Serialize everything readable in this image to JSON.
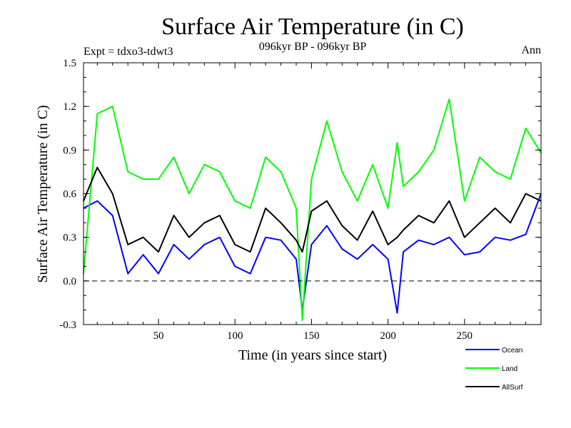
{
  "chart_data": {
    "type": "line",
    "title": "Surface Air Temperature (in C)",
    "subtitle": "096kyr BP - 096kyr BP",
    "left_note": "Expt = tdxo3-tdwt3",
    "right_note": "Ann",
    "xlabel": "Time (in years since start)",
    "ylabel": "Surface Air Temperature (in C)",
    "xlim": [
      1,
      300
    ],
    "ylim": [
      -0.3,
      1.5
    ],
    "x_ticks": [
      50,
      100,
      150,
      200,
      250
    ],
    "y_ticks": [
      -0.3,
      0.0,
      0.3,
      0.6,
      0.9,
      1.2,
      1.5
    ],
    "y_tick_labels": [
      "-0.3",
      "0.0",
      "0.3",
      "0.6",
      "0.9",
      "1.2",
      "1.5"
    ],
    "reference_line": {
      "y": 0.0,
      "style": "dashed"
    },
    "legend_position": "bottom-right, below plot",
    "grid": false,
    "x": [
      1,
      10,
      20,
      30,
      40,
      50,
      60,
      70,
      80,
      90,
      100,
      110,
      120,
      130,
      140,
      144,
      150,
      160,
      170,
      180,
      190,
      200,
      206,
      210,
      220,
      230,
      240,
      250,
      260,
      270,
      280,
      290,
      300
    ],
    "series": [
      {
        "name": "Ocean",
        "color": "#0000ff",
        "values": [
          0.5,
          0.55,
          0.45,
          0.05,
          0.18,
          0.05,
          0.25,
          0.15,
          0.25,
          0.3,
          0.1,
          0.05,
          0.3,
          0.28,
          0.15,
          -0.2,
          0.25,
          0.38,
          0.22,
          0.15,
          0.25,
          0.15,
          -0.22,
          0.2,
          0.28,
          0.25,
          0.3,
          0.18,
          0.2,
          0.3,
          0.28,
          0.32,
          0.6
        ]
      },
      {
        "name": "Land",
        "color": "#00ff00",
        "values": [
          0.05,
          1.15,
          1.2,
          0.75,
          0.7,
          0.7,
          0.85,
          0.6,
          0.8,
          0.75,
          0.55,
          0.5,
          0.85,
          0.75,
          0.5,
          -0.27,
          0.7,
          1.1,
          0.75,
          0.55,
          0.8,
          0.5,
          0.95,
          0.65,
          0.75,
          0.9,
          1.25,
          0.55,
          0.85,
          0.75,
          0.7,
          1.05,
          0.88
        ]
      },
      {
        "name": "AllSurf",
        "color": "#000000",
        "values": [
          0.55,
          0.78,
          0.6,
          0.25,
          0.3,
          0.2,
          0.45,
          0.3,
          0.4,
          0.45,
          0.25,
          0.2,
          0.5,
          0.4,
          0.28,
          0.2,
          0.48,
          0.55,
          0.38,
          0.28,
          0.48,
          0.25,
          0.3,
          0.35,
          0.45,
          0.4,
          0.55,
          0.3,
          0.4,
          0.5,
          0.4,
          0.6,
          0.55
        ]
      }
    ]
  }
}
